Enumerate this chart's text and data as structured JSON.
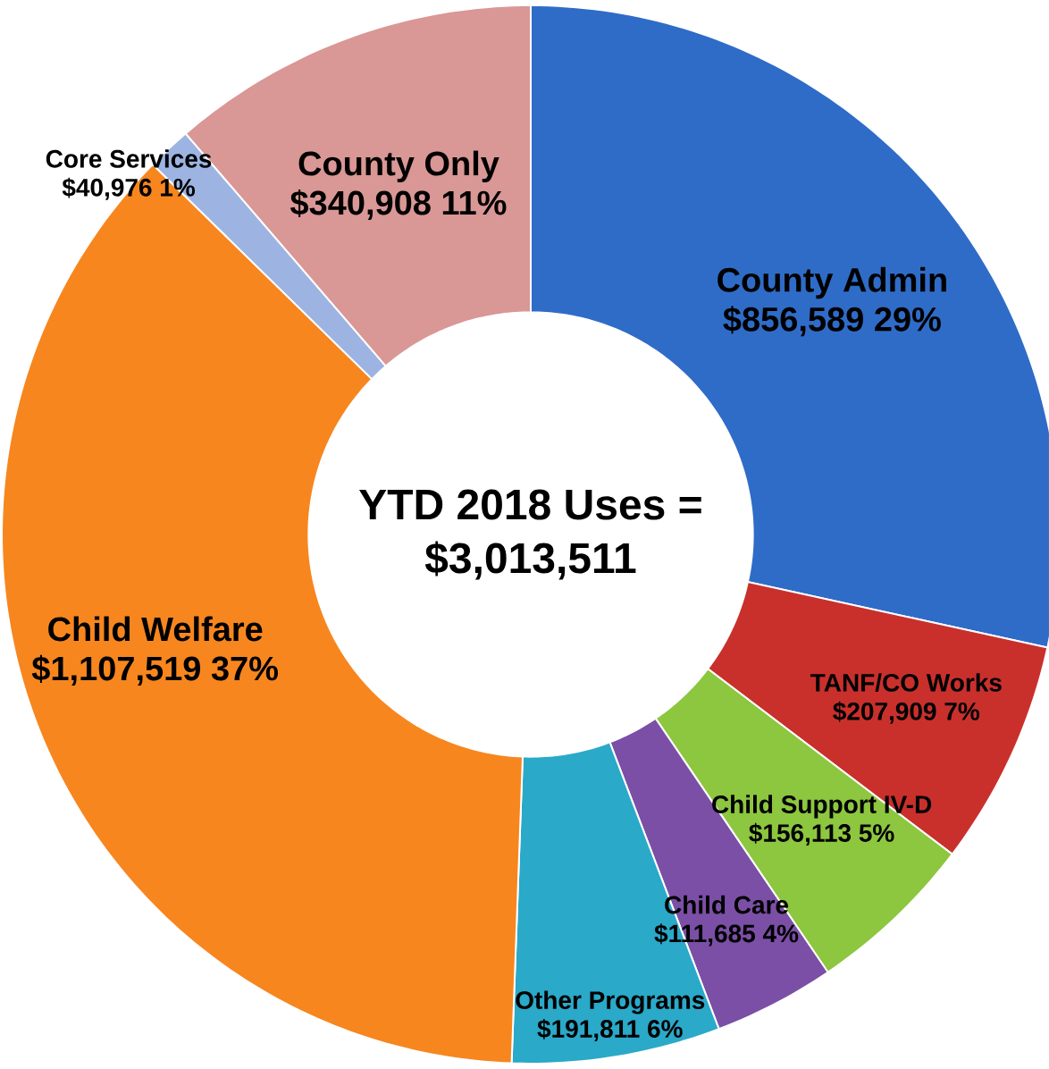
{
  "chart_data": {
    "type": "donut",
    "annotations": [
      "YTD 2018 Uses =",
      "$3,013,511"
    ],
    "categories": [
      "County Admin",
      "TANF/CO Works",
      "Child Support IV-D",
      "Child Care",
      "Other Programs",
      "Child Welfare",
      "Core Services",
      "County Only"
    ],
    "values": [
      856589,
      207909,
      156113,
      111685,
      191811,
      1107519,
      40976,
      340908
    ],
    "colors": [
      "#2f6cc8",
      "#c9302c",
      "#8dc63f",
      "#7b4fa6",
      "#2aa9c9",
      "#f7861f",
      "#9db4e2",
      "#d99795"
    ],
    "value_labels": [
      "$856,589  29%",
      "$207,909  7%",
      "$156,113  5%",
      "$111,685  4%",
      "$191,811  6%",
      "$1,107,519  37%",
      "$40,976  1%",
      "$340,908  11%"
    ]
  }
}
